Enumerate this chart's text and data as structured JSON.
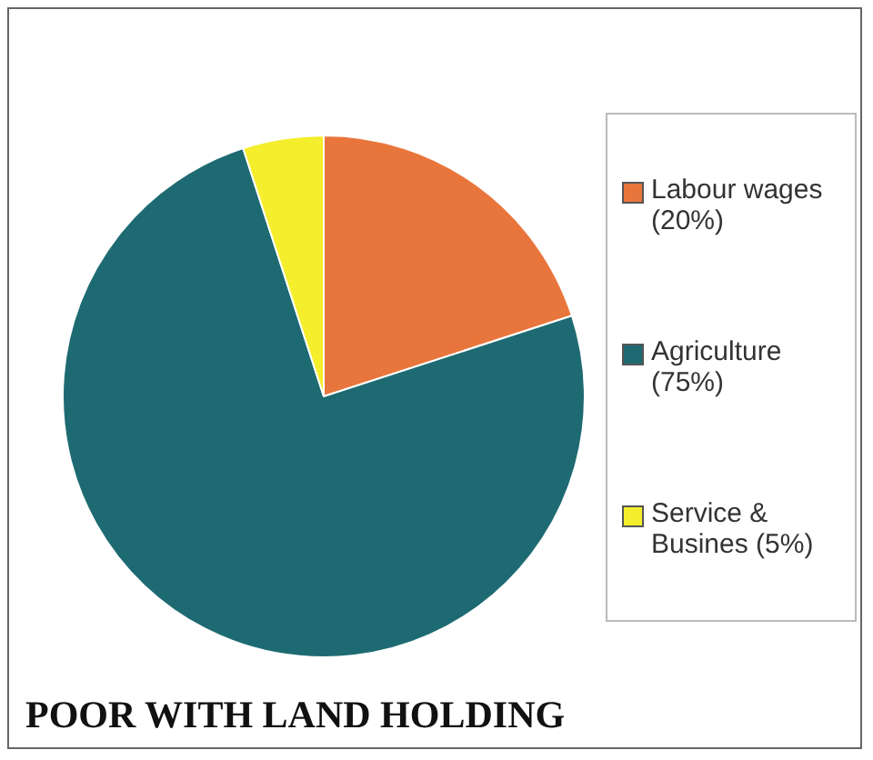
{
  "chart_data": {
    "type": "pie",
    "title": "POOR WITH LAND HOLDING",
    "categories": [
      "Labour wages (20%)",
      "Agriculture (75%)",
      "Service & Busines (5%)"
    ],
    "values": [
      20,
      75,
      5
    ],
    "colors": [
      "#e8763c",
      "#1e6a72",
      "#f4ee2c"
    ],
    "legend": "right"
  }
}
